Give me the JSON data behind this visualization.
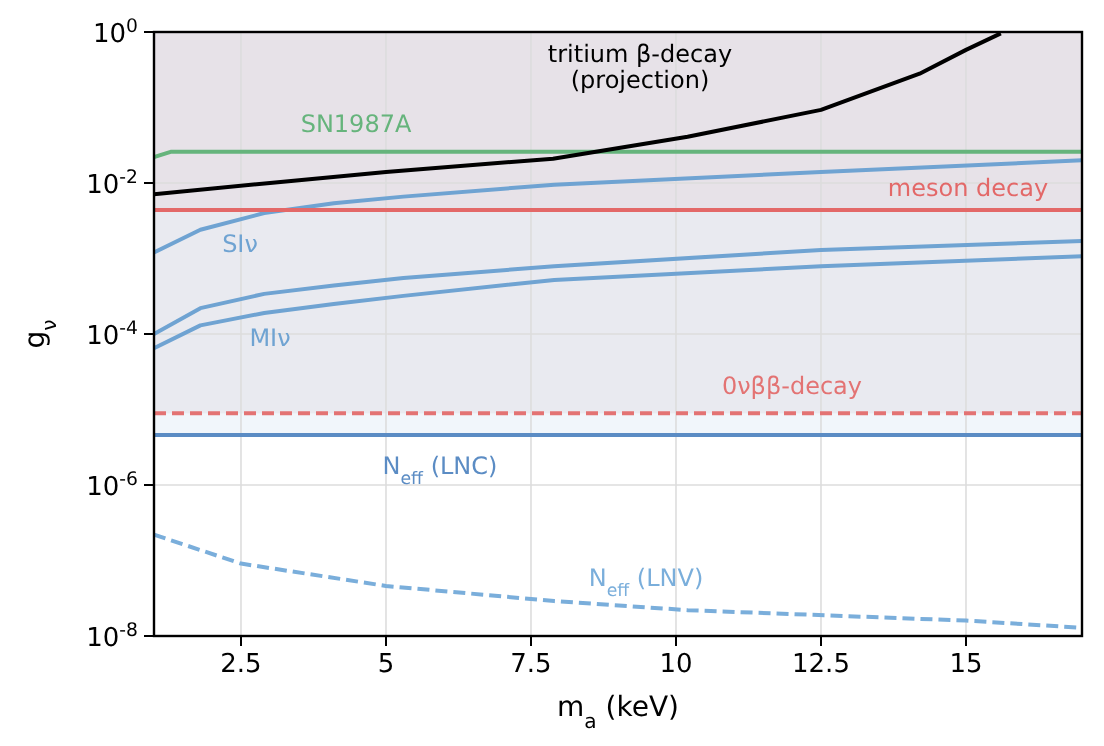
{
  "chart_data": {
    "type": "line",
    "xlabel": "m$_{a}$ (keV)",
    "ylabel": "g$_{ν}$",
    "log": "y",
    "grid": true,
    "xlim": [
      1,
      17
    ],
    "xticks": [
      2.5,
      5,
      7.5,
      10,
      12.5,
      15
    ],
    "ylim": [
      1e-08,
      1
    ],
    "yticks": [
      {
        "value": 1e-08,
        "label": "10$^{-8}$"
      },
      {
        "value": 1e-06,
        "label": "10$^{-6}$"
      },
      {
        "value": 0.0001,
        "label": "10$^{-4}$"
      },
      {
        "value": 0.01,
        "label": "10$^{-2}$"
      },
      {
        "value": 1,
        "label": "10$^{0}$"
      }
    ],
    "bands": [
      {
        "axis": "y",
        "from": 4.6e-06,
        "to": 1,
        "color": "#e8f0f8"
      },
      {
        "axis": "y",
        "from": 8.9e-06,
        "to": 1,
        "color": "#e4e2ea"
      },
      {
        "axis": "y",
        "from": 0.0044,
        "to": 1,
        "color": "#e6dce2"
      }
    ],
    "series": [
      {
        "name": "N$_{eff}$ (LNV)",
        "color": "#7aaedb",
        "line_style": "dashed",
        "x": [
          1,
          2.5,
          5,
          7.9,
          10.2,
          15,
          16.9
        ],
        "values": [
          2.2e-07,
          9.1e-08,
          4.6e-08,
          2.9e-08,
          2.2e-08,
          1.6e-08,
          1.3e-08
        ]
      },
      {
        "name": "N$_{eff}$ (LNC)",
        "color": "#5b8cc4",
        "x": [
          1,
          17
        ],
        "values": [
          4.6e-06,
          4.6e-06
        ]
      },
      {
        "name": "0νββ-decay",
        "color": "#e37373",
        "line_style": "dashed",
        "x": [
          1,
          17
        ],
        "values": [
          8.9e-06,
          8.9e-06
        ]
      },
      {
        "name": "MIν",
        "color": "#6fa3d2",
        "x": [
          1,
          1.8,
          2.9,
          4.1,
          5.3,
          7.9,
          12.5,
          17
        ],
        "values": [
          6.5e-05,
          0.00013,
          0.00019,
          0.00025,
          0.00032,
          0.00052,
          0.00079,
          0.00107
        ]
      },
      {
        "color": "#6fa3d2",
        "x": [
          1,
          1.8,
          2.9,
          4.1,
          5.3,
          7.9,
          12.5,
          17
        ],
        "values": [
          0.0001,
          0.00022,
          0.00034,
          0.00044,
          0.00055,
          0.00079,
          0.0013,
          0.0017
        ]
      },
      {
        "name": "SIν",
        "color": "#6fa3d2",
        "x": [
          1,
          1.8,
          2.9,
          4.1,
          5.3,
          7.9,
          12.5,
          17
        ],
        "values": [
          0.0012,
          0.0024,
          0.004,
          0.0054,
          0.0066,
          0.0095,
          0.014,
          0.02
        ]
      },
      {
        "name": "meson decay",
        "color": "#e36868",
        "x": [
          1,
          17
        ],
        "values": [
          0.0044,
          0.0044
        ]
      },
      {
        "name": "SN1987A",
        "color": "#66b47c",
        "x": [
          1,
          1.3,
          17
        ],
        "values": [
          0.022,
          0.026,
          0.026
        ]
      },
      {
        "name": "tritium β-decay\n(projection)",
        "color": "#000000",
        "x": [
          1,
          3,
          5,
          7.88,
          10.2,
          12.5,
          14.2,
          15,
          15.6
        ],
        "values": [
          0.0071,
          0.01,
          0.014,
          0.021,
          0.041,
          0.093,
          0.28,
          0.58,
          0.96
        ]
      }
    ]
  }
}
